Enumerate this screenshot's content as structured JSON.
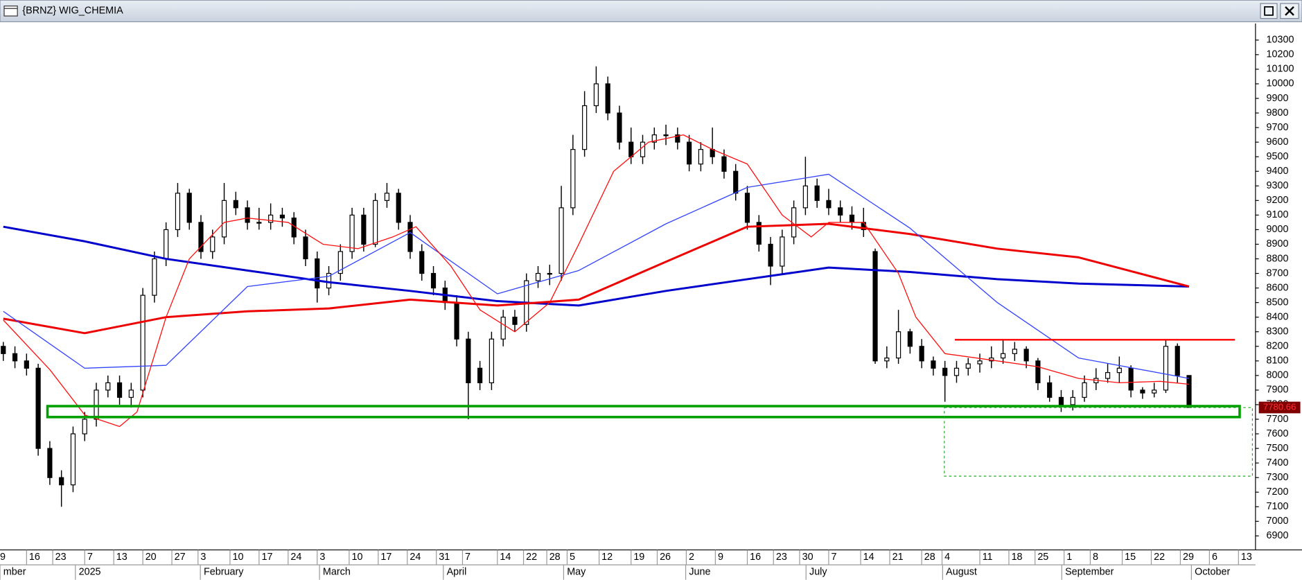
{
  "chart_data": {
    "type": "candlestick",
    "title": "{BRNZ} WIG_CHEMIA",
    "xlim": [
      -0.57,
      215.43
    ],
    "ylim": [
      6804,
      10414
    ],
    "yticks": [
      6900,
      7000,
      7100,
      7200,
      7300,
      7400,
      7500,
      7600,
      7700,
      7800,
      7900,
      8000,
      8100,
      8200,
      8300,
      8400,
      8500,
      8600,
      8700,
      8800,
      8900,
      9000,
      9100,
      9200,
      9300,
      9400,
      9500,
      9600,
      9700,
      9800,
      9900,
      10000,
      10100,
      10200,
      10300
    ],
    "xticks": [
      {
        "value": -1,
        "label": "9"
      },
      {
        "value": 4,
        "label": "16"
      },
      {
        "value": 8.5,
        "label": "23"
      },
      {
        "value": 14,
        "label": "7"
      },
      {
        "value": 19,
        "label": "13"
      },
      {
        "value": 24,
        "label": "20"
      },
      {
        "value": 29,
        "label": "27"
      },
      {
        "value": 33.5,
        "label": "3"
      },
      {
        "value": 39,
        "label": "10"
      },
      {
        "value": 44,
        "label": "17"
      },
      {
        "value": 49,
        "label": "24"
      },
      {
        "value": 54,
        "label": "3"
      },
      {
        "value": 59.5,
        "label": "10"
      },
      {
        "value": 64.5,
        "label": "17"
      },
      {
        "value": 69.5,
        "label": "24"
      },
      {
        "value": 74.5,
        "label": "31"
      },
      {
        "value": 79,
        "label": "7"
      },
      {
        "value": 85,
        "label": "14"
      },
      {
        "value": 89.5,
        "label": "22"
      },
      {
        "value": 93.5,
        "label": "28"
      },
      {
        "value": 97,
        "label": "5"
      },
      {
        "value": 102.5,
        "label": "12"
      },
      {
        "value": 108,
        "label": "19"
      },
      {
        "value": 112.5,
        "label": "26"
      },
      {
        "value": 117.5,
        "label": "2"
      },
      {
        "value": 122.5,
        "label": "9"
      },
      {
        "value": 128,
        "label": "16"
      },
      {
        "value": 132.5,
        "label": "23"
      },
      {
        "value": 137,
        "label": "30"
      },
      {
        "value": 142,
        "label": "7"
      },
      {
        "value": 147.5,
        "label": "14"
      },
      {
        "value": 152.5,
        "label": "21"
      },
      {
        "value": 158,
        "label": "28"
      },
      {
        "value": 161.5,
        "label": "4"
      },
      {
        "value": 168,
        "label": "11"
      },
      {
        "value": 173,
        "label": "18"
      },
      {
        "value": 177.5,
        "label": "25"
      },
      {
        "value": 182.5,
        "label": "1"
      },
      {
        "value": 187,
        "label": "8"
      },
      {
        "value": 192.5,
        "label": "15"
      },
      {
        "value": 197.5,
        "label": "22"
      },
      {
        "value": 202.5,
        "label": "29"
      },
      {
        "value": 207.5,
        "label": "6"
      },
      {
        "value": 212.5,
        "label": "13"
      }
    ],
    "month_ticks": [
      {
        "value": -0.57,
        "label": "mber"
      },
      {
        "value": 12.4,
        "label": "2025"
      },
      {
        "value": 33.9,
        "label": "February"
      },
      {
        "value": 54.4,
        "label": "March"
      },
      {
        "value": 75.7,
        "label": "April"
      },
      {
        "value": 96.4,
        "label": "May"
      },
      {
        "value": 117.4,
        "label": "June"
      },
      {
        "value": 138.1,
        "label": "July"
      },
      {
        "value": 161.6,
        "label": "August"
      },
      {
        "value": 182.1,
        "label": "September"
      },
      {
        "value": 204.4,
        "label": "October"
      }
    ],
    "up_color": "#ffffff",
    "down_color": "#000000",
    "x": [
      0,
      2,
      4,
      6,
      8,
      10,
      12,
      14,
      16,
      18,
      20,
      22,
      24,
      26,
      28,
      30,
      32,
      34,
      36,
      38,
      40,
      42,
      44,
      46,
      48,
      50,
      52,
      54,
      56,
      58,
      60,
      62,
      64,
      66,
      68,
      70,
      72,
      74,
      76,
      78,
      80,
      82,
      84,
      86,
      88,
      90,
      92,
      94,
      96,
      98,
      100,
      102,
      104,
      106,
      108,
      110,
      112,
      114,
      116,
      118,
      120,
      122,
      124,
      126,
      128,
      130,
      132,
      134,
      136,
      138,
      140,
      142,
      144,
      146,
      148,
      150,
      152,
      154,
      156,
      158,
      160,
      162,
      164,
      166,
      168,
      170,
      172,
      174,
      176,
      178,
      180,
      182,
      184,
      186,
      188,
      190,
      192,
      194,
      196,
      198,
      200,
      202,
      204
    ],
    "candles": [
      [
        8200,
        8230,
        8100,
        8150
      ],
      [
        8150,
        8200,
        8050,
        8100
      ],
      [
        8100,
        8150,
        8000,
        8050
      ],
      [
        8050,
        8080,
        7450,
        7500
      ],
      [
        7500,
        7550,
        7250,
        7300
      ],
      [
        7300,
        7350,
        7100,
        7250
      ],
      [
        7250,
        7650,
        7200,
        7600
      ],
      [
        7600,
        7750,
        7550,
        7700
      ],
      [
        7700,
        7950,
        7650,
        7900
      ],
      [
        7900,
        8000,
        7850,
        7950
      ],
      [
        7950,
        8000,
        7800,
        7850
      ],
      [
        7850,
        7950,
        7780,
        7900
      ],
      [
        7900,
        8600,
        7850,
        8550
      ],
      [
        8550,
        8850,
        8500,
        8800
      ],
      [
        8800,
        9050,
        8750,
        9000
      ],
      [
        9000,
        9320,
        8950,
        9250
      ],
      [
        9250,
        9280,
        9000,
        9050
      ],
      [
        9050,
        9100,
        8800,
        8850
      ],
      [
        8850,
        9000,
        8800,
        8950
      ],
      [
        8950,
        9320,
        8900,
        9200
      ],
      [
        9200,
        9260,
        9100,
        9150
      ],
      [
        9150,
        9200,
        9000,
        9050
      ],
      [
        9050,
        9150,
        9000,
        9050
      ],
      [
        9050,
        9180,
        9000,
        9100
      ],
      [
        9100,
        9150,
        9020,
        9080
      ],
      [
        9080,
        9120,
        8900,
        8950
      ],
      [
        8950,
        9000,
        8750,
        8800
      ],
      [
        8800,
        8850,
        8500,
        8600
      ],
      [
        8600,
        8750,
        8550,
        8700
      ],
      [
        8700,
        8900,
        8650,
        8850
      ],
      [
        8850,
        9150,
        8800,
        9100
      ],
      [
        9100,
        9150,
        8850,
        8900
      ],
      [
        8900,
        9250,
        8880,
        9200
      ],
      [
        9200,
        9320,
        9150,
        9250
      ],
      [
        9250,
        9280,
        9000,
        9050
      ],
      [
        9050,
        9100,
        8800,
        8850
      ],
      [
        8850,
        8900,
        8650,
        8700
      ],
      [
        8700,
        8750,
        8550,
        8600
      ],
      [
        8600,
        8650,
        8450,
        8500
      ],
      [
        8500,
        8550,
        8200,
        8250
      ],
      [
        8250,
        8300,
        7700,
        7950
      ],
      [
        8050,
        8100,
        7900,
        7950
      ],
      [
        7950,
        8300,
        7900,
        8250
      ],
      [
        8250,
        8450,
        8200,
        8400
      ],
      [
        8400,
        8450,
        8300,
        8350
      ],
      [
        8350,
        8700,
        8300,
        8650
      ],
      [
        8650,
        8750,
        8600,
        8700
      ],
      [
        8700,
        8760,
        8620,
        8700
      ],
      [
        8700,
        9300,
        8650,
        9150
      ],
      [
        9150,
        9650,
        9100,
        9550
      ],
      [
        9550,
        9950,
        9500,
        9850
      ],
      [
        9850,
        10120,
        9800,
        10000
      ],
      [
        10000,
        10050,
        9750,
        9800
      ],
      [
        9800,
        9850,
        9550,
        9600
      ],
      [
        9600,
        9700,
        9450,
        9500
      ],
      [
        9500,
        9650,
        9450,
        9600
      ],
      [
        9600,
        9700,
        9550,
        9650
      ],
      [
        9650,
        9720,
        9580,
        9650
      ],
      [
        9650,
        9700,
        9550,
        9600
      ],
      [
        9600,
        9650,
        9400,
        9450
      ],
      [
        9450,
        9600,
        9400,
        9550
      ],
      [
        9550,
        9700,
        9450,
        9500
      ],
      [
        9500,
        9550,
        9350,
        9400
      ],
      [
        9400,
        9450,
        9200,
        9250
      ],
      [
        9250,
        9300,
        9000,
        9050
      ],
      [
        9050,
        9100,
        8850,
        8900
      ],
      [
        8900,
        8950,
        8620,
        8750
      ],
      [
        8750,
        9000,
        8700,
        8950
      ],
      [
        8950,
        9200,
        8900,
        9150
      ],
      [
        9150,
        9500,
        9100,
        9300
      ],
      [
        9300,
        9350,
        9150,
        9200
      ],
      [
        9200,
        9280,
        9100,
        9150
      ],
      [
        9150,
        9200,
        9050,
        9100
      ],
      [
        9100,
        9160,
        9000,
        9050
      ],
      [
        9050,
        9150,
        8950,
        9000
      ],
      [
        8850,
        8870,
        8080,
        8100
      ],
      [
        8100,
        8200,
        8050,
        8120
      ],
      [
        8120,
        8450,
        8080,
        8300
      ],
      [
        8300,
        8320,
        8150,
        8200
      ],
      [
        8200,
        8250,
        8050,
        8100
      ],
      [
        8100,
        8130,
        8000,
        8050
      ],
      [
        8050,
        8100,
        7820,
        8000
      ],
      [
        8000,
        8100,
        7950,
        8050
      ],
      [
        8050,
        8120,
        8000,
        8080
      ],
      [
        8080,
        8150,
        8020,
        8100
      ],
      [
        8100,
        8200,
        8050,
        8120
      ],
      [
        8120,
        8250,
        8080,
        8150
      ],
      [
        8150,
        8230,
        8100,
        8180
      ],
      [
        8180,
        8200,
        8050,
        8100
      ],
      [
        8100,
        8120,
        7900,
        7950
      ],
      [
        7950,
        8000,
        7820,
        7850
      ],
      [
        7850,
        7900,
        7750,
        7800
      ],
      [
        7800,
        7900,
        7760,
        7850
      ],
      [
        7850,
        8000,
        7820,
        7950
      ],
      [
        7950,
        8050,
        7900,
        7980
      ],
      [
        7980,
        8080,
        7950,
        8020
      ],
      [
        8020,
        8130,
        7950,
        8050
      ],
      [
        8050,
        8070,
        7850,
        7900
      ],
      [
        7900,
        7920,
        7840,
        7880
      ],
      [
        7880,
        7950,
        7850,
        7900
      ],
      [
        7900,
        8250,
        7880,
        8200
      ],
      [
        8200,
        8220,
        7950,
        8000
      ],
      [
        8000,
        8000,
        7780.66,
        7780.66
      ]
    ],
    "series": [
      {
        "color": "#0000cc",
        "style": "thick",
        "x": [
          0,
          14,
          28,
          42,
          56,
          70,
          85,
          99,
          114,
          128,
          142,
          156,
          171,
          185,
          204
        ],
        "values": [
          9020,
          8920,
          8800,
          8720,
          8640,
          8580,
          8510,
          8480,
          8580,
          8660,
          8740,
          8710,
          8660,
          8630,
          8610
        ]
      },
      {
        "color": "#ee0000",
        "style": "thick",
        "x": [
          0,
          14,
          28,
          42,
          56,
          70,
          85,
          99,
          114,
          128,
          142,
          156,
          171,
          185,
          204
        ],
        "values": [
          8390,
          8290,
          8400,
          8440,
          8460,
          8520,
          8480,
          8520,
          8780,
          9020,
          9040,
          8970,
          8870,
          8810,
          8610
        ]
      },
      {
        "color": "#3344ff",
        "style": "thin",
        "x": [
          0,
          14,
          28,
          42,
          56,
          70,
          85,
          99,
          114,
          128,
          142,
          156,
          171,
          185,
          204
        ],
        "values": [
          8440,
          8050,
          8070,
          8610,
          8680,
          8980,
          8560,
          8720,
          9040,
          9290,
          9380,
          9010,
          8500,
          8120,
          7980
        ]
      },
      {
        "color": "#ff1010",
        "style": "thin",
        "x": [
          0,
          8,
          14,
          20,
          23,
          28,
          32,
          38,
          42,
          49,
          55,
          61,
          67,
          71,
          77,
          82,
          88,
          94,
          99,
          105,
          111,
          117,
          122,
          128,
          134,
          139,
          142,
          148,
          154,
          157,
          162,
          171,
          178,
          185,
          192,
          199,
          204
        ],
        "values": [
          8380,
          8040,
          7730,
          7650,
          7750,
          8400,
          8800,
          9050,
          9080,
          9050,
          8900,
          8870,
          8950,
          9020,
          8750,
          8450,
          8300,
          8500,
          8900,
          9400,
          9600,
          9650,
          9550,
          9450,
          9100,
          8950,
          9050,
          9050,
          8700,
          8400,
          8150,
          8100,
          8060,
          7980,
          7950,
          7960,
          7940
        ]
      }
    ],
    "annotations": [
      {
        "type": "hline",
        "x": [
          163.7,
          211.9
        ],
        "y": 8245,
        "color": "#ff0000",
        "style": "solid"
      },
      {
        "type": "box",
        "x": [
          7.6,
          212.7
        ],
        "y": [
          7715,
          7790
        ],
        "color": "#00a000",
        "style": "solid"
      },
      {
        "type": "box",
        "x": [
          161.9,
          214.9
        ],
        "y": [
          7310,
          7780
        ],
        "color": "#22aa22",
        "style": "dashed"
      }
    ],
    "last_price": 7780.66,
    "last_price_color": "#ff3030",
    "last_price_background": "#800000"
  }
}
